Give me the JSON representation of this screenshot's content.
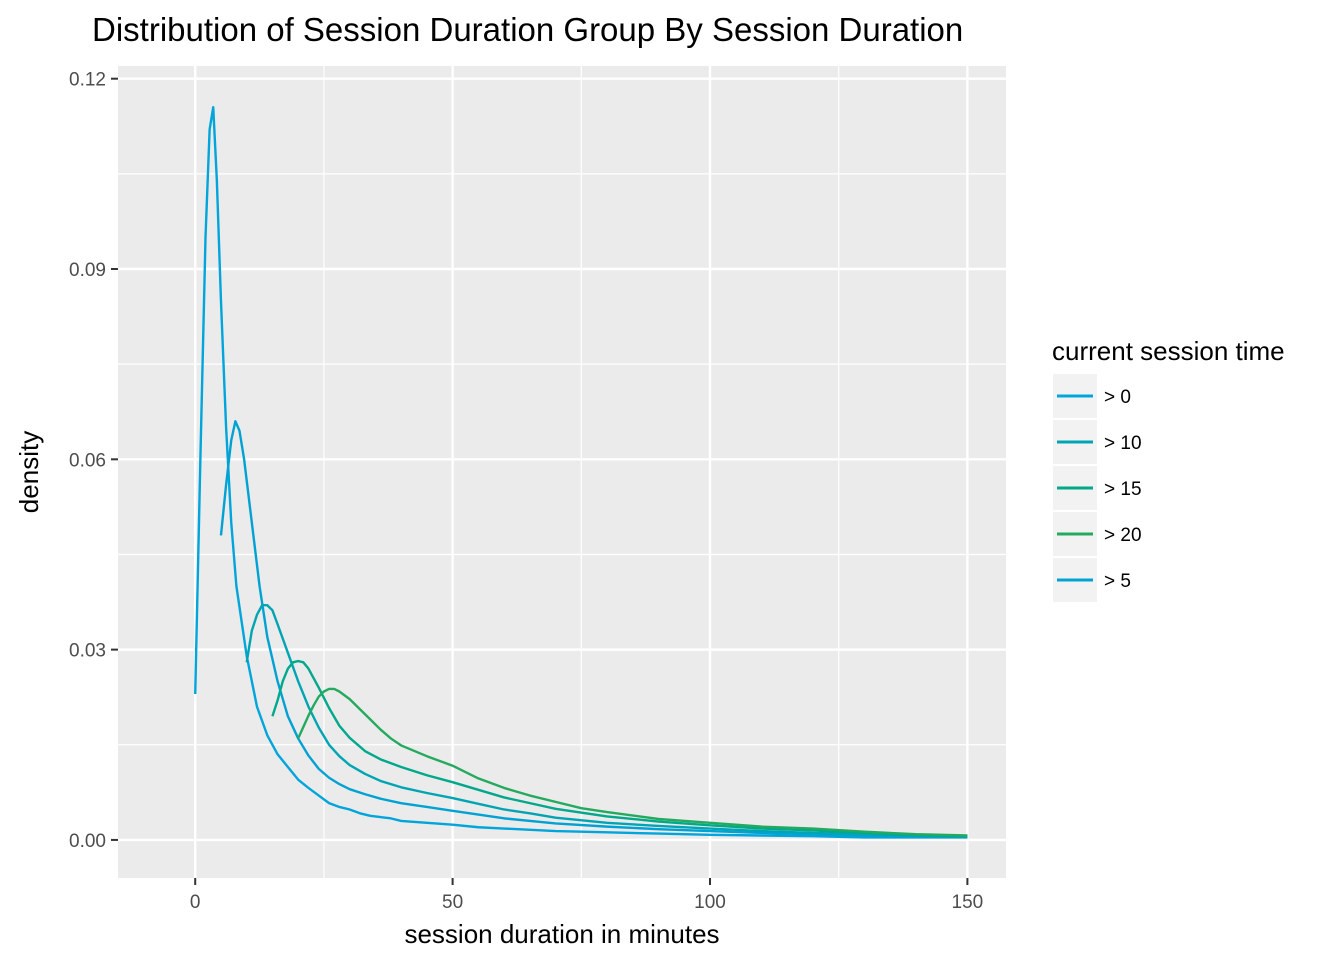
{
  "chart_data": {
    "type": "line",
    "title": "Distribution of Session Duration Group By Session Duration",
    "xlabel": "session duration in minutes",
    "ylabel": "density",
    "xlim": [
      -15,
      157.5
    ],
    "ylim": [
      -0.006,
      0.122
    ],
    "x_ticks": [
      0,
      50,
      100,
      150
    ],
    "x_tick_labels": [
      "0",
      "50",
      "100",
      "150"
    ],
    "y_ticks": [
      0.0,
      0.03,
      0.06,
      0.09,
      0.12
    ],
    "y_tick_labels": [
      "0.00",
      "0.03",
      "0.06",
      "0.09",
      "0.12"
    ],
    "grid": true,
    "legend": {
      "title": "current session time",
      "position": "right",
      "entries": [
        "> 0",
        "> 10",
        "> 15",
        "> 20",
        "> 5"
      ]
    },
    "series": [
      {
        "name": "> 0",
        "color": "#00A5DB",
        "points": [
          [
            0,
            0.023
          ],
          [
            1,
            0.06
          ],
          [
            2,
            0.095
          ],
          [
            2.8,
            0.112
          ],
          [
            3.5,
            0.1155
          ],
          [
            4.2,
            0.104
          ],
          [
            5,
            0.085
          ],
          [
            6,
            0.065
          ],
          [
            7,
            0.05
          ],
          [
            8,
            0.04
          ],
          [
            10,
            0.029
          ],
          [
            12,
            0.021
          ],
          [
            14,
            0.0165
          ],
          [
            16,
            0.0135
          ],
          [
            18,
            0.0115
          ],
          [
            20,
            0.0095
          ],
          [
            22,
            0.0082
          ],
          [
            24,
            0.007
          ],
          [
            26,
            0.0058
          ],
          [
            28,
            0.0052
          ],
          [
            30,
            0.0048
          ],
          [
            32,
            0.0042
          ],
          [
            34,
            0.0038
          ],
          [
            36,
            0.0036
          ],
          [
            38,
            0.0034
          ],
          [
            40,
            0.003
          ],
          [
            45,
            0.0027
          ],
          [
            50,
            0.0024
          ],
          [
            55,
            0.002
          ],
          [
            60,
            0.0018
          ],
          [
            70,
            0.0014
          ],
          [
            80,
            0.0012
          ],
          [
            90,
            0.001
          ],
          [
            100,
            0.0008
          ],
          [
            110,
            0.0007
          ],
          [
            120,
            0.0006
          ],
          [
            130,
            0.0004
          ],
          [
            140,
            0.0004
          ],
          [
            150,
            0.0004
          ]
        ]
      },
      {
        "name": "> 5",
        "color": "#00A2D4",
        "points": [
          [
            5,
            0.048
          ],
          [
            6,
            0.056
          ],
          [
            7,
            0.063
          ],
          [
            7.8,
            0.066
          ],
          [
            8.6,
            0.0645
          ],
          [
            9.5,
            0.06
          ],
          [
            11,
            0.05
          ],
          [
            12.5,
            0.04
          ],
          [
            14,
            0.032
          ],
          [
            16,
            0.025
          ],
          [
            18,
            0.0195
          ],
          [
            20,
            0.016
          ],
          [
            22,
            0.0133
          ],
          [
            24,
            0.0112
          ],
          [
            26,
            0.0098
          ],
          [
            28,
            0.0088
          ],
          [
            30,
            0.008
          ],
          [
            33,
            0.0072
          ],
          [
            36,
            0.0065
          ],
          [
            40,
            0.0058
          ],
          [
            45,
            0.0052
          ],
          [
            50,
            0.0046
          ],
          [
            55,
            0.004
          ],
          [
            60,
            0.0034
          ],
          [
            70,
            0.0026
          ],
          [
            80,
            0.0021
          ],
          [
            90,
            0.0017
          ],
          [
            100,
            0.0014
          ],
          [
            110,
            0.0011
          ],
          [
            120,
            0.0009
          ],
          [
            130,
            0.0007
          ],
          [
            140,
            0.0006
          ],
          [
            150,
            0.0005
          ]
        ]
      },
      {
        "name": "> 10",
        "color": "#00A5B3",
        "points": [
          [
            10,
            0.028
          ],
          [
            11,
            0.033
          ],
          [
            12,
            0.0355
          ],
          [
            13,
            0.037
          ],
          [
            14,
            0.037
          ],
          [
            15,
            0.0362
          ],
          [
            16,
            0.034
          ],
          [
            18,
            0.0295
          ],
          [
            20,
            0.025
          ],
          [
            22,
            0.021
          ],
          [
            24,
            0.0177
          ],
          [
            26,
            0.015
          ],
          [
            28,
            0.0132
          ],
          [
            30,
            0.0118
          ],
          [
            33,
            0.0104
          ],
          [
            36,
            0.0093
          ],
          [
            40,
            0.0083
          ],
          [
            45,
            0.0074
          ],
          [
            50,
            0.0066
          ],
          [
            55,
            0.0057
          ],
          [
            60,
            0.0048
          ],
          [
            65,
            0.0042
          ],
          [
            70,
            0.0035
          ],
          [
            80,
            0.0027
          ],
          [
            90,
            0.0022
          ],
          [
            100,
            0.0018
          ],
          [
            110,
            0.0014
          ],
          [
            120,
            0.0011
          ],
          [
            130,
            0.0009
          ],
          [
            140,
            0.0007
          ],
          [
            150,
            0.0005
          ]
        ]
      },
      {
        "name": "> 15",
        "color": "#00A88C",
        "points": [
          [
            15,
            0.0195
          ],
          [
            16,
            0.022
          ],
          [
            17,
            0.025
          ],
          [
            18,
            0.027
          ],
          [
            19,
            0.028
          ],
          [
            20,
            0.0282
          ],
          [
            21,
            0.028
          ],
          [
            22,
            0.027
          ],
          [
            24,
            0.024
          ],
          [
            26,
            0.0208
          ],
          [
            28,
            0.018
          ],
          [
            30,
            0.0161
          ],
          [
            33,
            0.014
          ],
          [
            36,
            0.0127
          ],
          [
            40,
            0.0115
          ],
          [
            45,
            0.0102
          ],
          [
            50,
            0.0091
          ],
          [
            55,
            0.0079
          ],
          [
            60,
            0.0067
          ],
          [
            65,
            0.0058
          ],
          [
            70,
            0.0049
          ],
          [
            80,
            0.0037
          ],
          [
            90,
            0.0029
          ],
          [
            100,
            0.0023
          ],
          [
            110,
            0.0018
          ],
          [
            120,
            0.0015
          ],
          [
            130,
            0.0011
          ],
          [
            140,
            0.0008
          ],
          [
            150,
            0.0006
          ]
        ]
      },
      {
        "name": "> 20",
        "color": "#24AA5E",
        "points": [
          [
            20,
            0.016
          ],
          [
            21,
            0.0178
          ],
          [
            22,
            0.0196
          ],
          [
            23,
            0.0212
          ],
          [
            24,
            0.0226
          ],
          [
            25,
            0.0234
          ],
          [
            26,
            0.0238
          ],
          [
            27,
            0.0238
          ],
          [
            28,
            0.0234
          ],
          [
            30,
            0.0222
          ],
          [
            32,
            0.0206
          ],
          [
            34,
            0.019
          ],
          [
            36,
            0.0174
          ],
          [
            38,
            0.016
          ],
          [
            40,
            0.0149
          ],
          [
            45,
            0.0132
          ],
          [
            50,
            0.0117
          ],
          [
            55,
            0.0097
          ],
          [
            60,
            0.0082
          ],
          [
            65,
            0.007
          ],
          [
            70,
            0.006
          ],
          [
            75,
            0.005
          ],
          [
            80,
            0.0044
          ],
          [
            90,
            0.0033
          ],
          [
            100,
            0.0027
          ],
          [
            110,
            0.0021
          ],
          [
            120,
            0.0018
          ],
          [
            130,
            0.0013
          ],
          [
            140,
            0.0009
          ],
          [
            150,
            0.0007
          ]
        ]
      }
    ]
  }
}
